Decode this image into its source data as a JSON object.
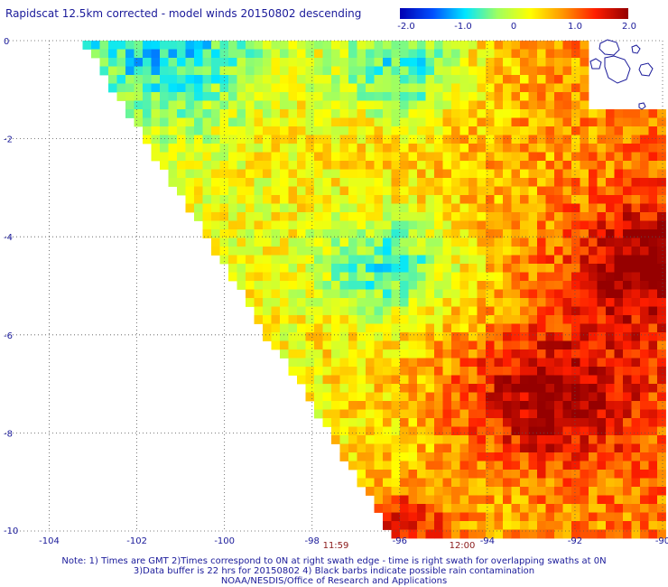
{
  "title": "Rapidscat 12.5km corrected - model winds 20150802 descending",
  "colorbar": {
    "ticks": [
      "-2.0",
      "-1.0",
      "0",
      "1.0",
      "2.0"
    ],
    "range": [
      -2.0,
      2.0
    ],
    "colors": [
      "#0000b4",
      "#0050ff",
      "#00e6ff",
      "#a0ff60",
      "#ffff00",
      "#ff9600",
      "#ff1e00",
      "#960000"
    ]
  },
  "map": {
    "lon_range": [
      -105,
      -90
    ],
    "lat_range": [
      -10,
      0
    ],
    "lon_labels": [
      "-104",
      "-102",
      "-100",
      "-98",
      "-96",
      "-94",
      "-92",
      "-90"
    ],
    "lat_labels": [
      "0",
      "-2",
      "-4",
      "-6",
      "-8",
      "-10"
    ],
    "gridlines": "dotted",
    "coastline": "Galapagos Islands (top-right)"
  },
  "times": [
    {
      "label": "11:59"
    },
    {
      "label": "12:00"
    }
  ],
  "notes": [
    "Note: 1) Times are GMT 2)Times correspond to 0N at right swath edge - time is right swath for overlapping swaths at 0N",
    "3)Data buffer is 22 hrs for 20150802 4) Black barbs indicate possible rain contamination",
    "NOAA/NESDIS/Office of Research and Applications"
  ]
}
